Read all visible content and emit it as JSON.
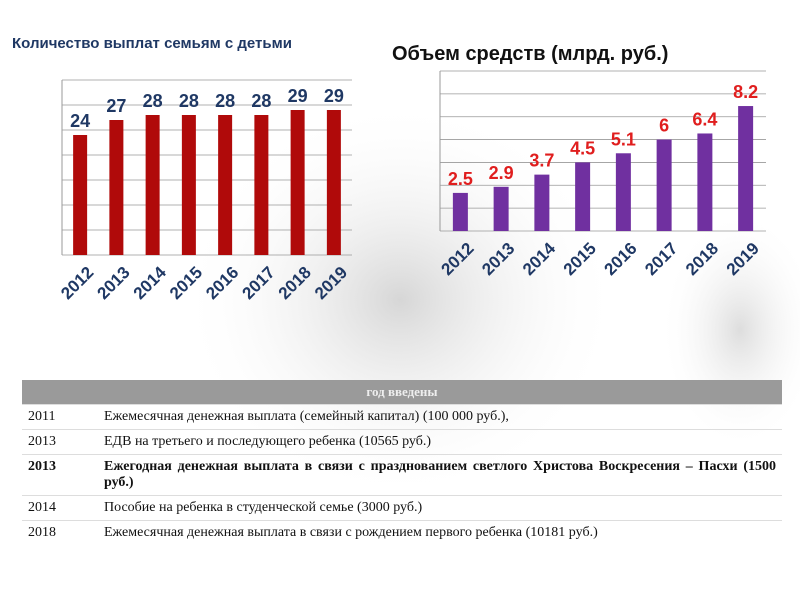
{
  "chart_data": [
    {
      "type": "bar",
      "title": "Количество выплат семьям с детьми",
      "categories": [
        "2012",
        "2013",
        "2014",
        "2015",
        "2016",
        "2017",
        "2018",
        "2019"
      ],
      "values": [
        24,
        27,
        28,
        28,
        28,
        28,
        29,
        29
      ],
      "color": "#b00a0a",
      "label_color": "#1f3864",
      "ylim": [
        0,
        35
      ],
      "yticks": [
        0,
        5,
        10,
        15,
        20,
        25,
        30,
        35
      ],
      "grid": true
    },
    {
      "type": "bar",
      "title": "Объем средств (млрд. руб.)",
      "categories": [
        "2012",
        "2013",
        "2014",
        "2015",
        "2016",
        "2017",
        "2018",
        "2019"
      ],
      "values": [
        2.5,
        2.9,
        3.7,
        4.5,
        5.1,
        6,
        6.4,
        8.2
      ],
      "color": "#7030a0",
      "label_color": "#e01e1e",
      "ylim": [
        0,
        10.5
      ],
      "yticks": [
        0,
        1.5,
        3,
        4.5,
        6,
        7.5,
        9,
        10.5
      ],
      "grid": true
    }
  ],
  "table": {
    "header": "год введены",
    "rows": [
      [
        "2011",
        "Ежемесячная денежная выплата (семейный капитал) (100 000 руб.),"
      ],
      [
        "2013",
        "ЕДВ на третьего и последующего ребенка (10565 руб.)"
      ],
      [
        "2013",
        "Ежегодная денежная выплата в связи с празднованием светлого Христова Воскресения – Пасхи (1500 руб.)"
      ],
      [
        "2014",
        "Пособие на ребенка в студенческой семье (3000 руб.)"
      ],
      [
        "2018",
        "Ежемесячная денежная выплата в связи с рождением первого ребенка (10181 руб.)"
      ]
    ]
  }
}
